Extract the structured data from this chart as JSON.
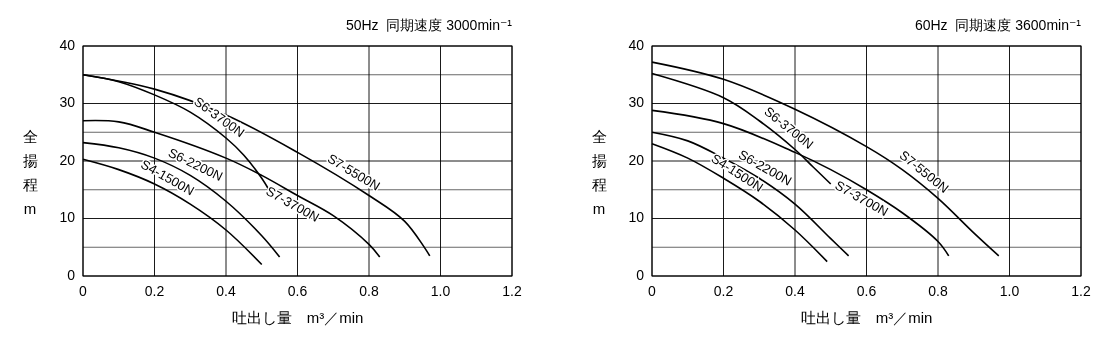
{
  "chart_data": [
    {
      "type": "line",
      "title": "50Hz  同期速度 3000min⁻¹",
      "xlabel": "吐出し量　m³／min",
      "ylabel": "全揚程 m",
      "xlim": [
        0,
        1.2
      ],
      "xticks": [
        0,
        0.2,
        0.4,
        0.6,
        0.8,
        {
          "value": 1,
          "label": "1.0"
        },
        1.2
      ],
      "ylim": [
        0,
        40
      ],
      "yticks": [
        0,
        {
          "value": 5,
          "label": null
        },
        10,
        {
          "value": 15,
          "label": null
        },
        20,
        {
          "value": 25,
          "label": null
        },
        30,
        {
          "value": 35,
          "label": null
        },
        40
      ],
      "grid": true,
      "marker": "none",
      "line_style": "solid",
      "series": [
        {
          "name": "S7-5500N",
          "color": "#000000",
          "x": [
            0,
            0.2,
            0.4,
            0.6,
            0.8,
            0.9,
            0.97
          ],
          "values": [
            35,
            32.5,
            28,
            21.5,
            14,
            9.5,
            3.5
          ]
        },
        {
          "name": "S6-3700N",
          "color": "#000000",
          "x": [
            0,
            0.1,
            0.2,
            0.3,
            0.4,
            0.45,
            0.5,
            0.52
          ],
          "values": [
            35,
            33.8,
            31.5,
            28.5,
            24,
            21,
            17,
            15
          ]
        },
        {
          "name": "S7-3700N",
          "color": "#000000",
          "x": [
            0,
            0.1,
            0.2,
            0.4,
            0.5,
            0.6,
            0.7,
            0.8,
            0.83
          ],
          "values": [
            27,
            26.8,
            25,
            20.5,
            17.5,
            14,
            10.5,
            5.5,
            3.3
          ]
        },
        {
          "name": "S6-2200N",
          "color": "#000000",
          "x": [
            0,
            0.1,
            0.2,
            0.3,
            0.4,
            0.5,
            0.55
          ],
          "values": [
            23.2,
            22.3,
            20.5,
            17.5,
            13,
            7,
            3.3
          ]
        },
        {
          "name": "S4-1500N",
          "color": "#000000",
          "x": [
            0,
            0.1,
            0.2,
            0.3,
            0.4,
            0.5
          ],
          "values": [
            20.3,
            18.5,
            16,
            12.5,
            8,
            2
          ]
        }
      ]
    },
    {
      "type": "line",
      "title": "60Hz  同期速度 3600min⁻¹",
      "xlabel": "吐出し量　m³／min",
      "ylabel": "全揚程 m",
      "xlim": [
        0,
        1.2
      ],
      "xticks": [
        0,
        0.2,
        0.4,
        0.6,
        0.8,
        {
          "value": 1,
          "label": "1.0"
        },
        1.2
      ],
      "ylim": [
        0,
        40
      ],
      "yticks": [
        0,
        {
          "value": 5,
          "label": null
        },
        10,
        {
          "value": 15,
          "label": null
        },
        20,
        {
          "value": 25,
          "label": null
        },
        30,
        {
          "value": 35,
          "label": null
        },
        40
      ],
      "grid": true,
      "marker": "none",
      "line_style": "solid",
      "series": [
        {
          "name": "S7-5500N",
          "color": "#000000",
          "x": [
            0,
            0.2,
            0.4,
            0.6,
            0.7,
            0.8,
            0.9,
            0.97
          ],
          "values": [
            37.2,
            34.2,
            29,
            22.5,
            18.5,
            13.5,
            7.5,
            3.5
          ]
        },
        {
          "name": "S6-3700N",
          "color": "#000000",
          "x": [
            0,
            0.2,
            0.3,
            0.4,
            0.45,
            0.5
          ],
          "values": [
            35.2,
            31,
            27,
            22,
            19,
            16
          ]
        },
        {
          "name": "S7-3700N",
          "color": "#000000",
          "x": [
            0,
            0.2,
            0.4,
            0.5,
            0.6,
            0.7,
            0.8,
            0.83
          ],
          "values": [
            28.8,
            26.5,
            21.5,
            18.5,
            15,
            11,
            6,
            3.5
          ]
        },
        {
          "name": "S6-2200N",
          "color": "#000000",
          "x": [
            0,
            0.1,
            0.2,
            0.3,
            0.4,
            0.5,
            0.55
          ],
          "values": [
            25,
            23.5,
            20.5,
            17,
            12.5,
            6.5,
            3.5
          ]
        },
        {
          "name": "S4-1500N",
          "color": "#000000",
          "x": [
            0,
            0.1,
            0.2,
            0.3,
            0.4,
            0.49
          ],
          "values": [
            23,
            20.5,
            17,
            13,
            8,
            2.5
          ]
        }
      ]
    }
  ]
}
